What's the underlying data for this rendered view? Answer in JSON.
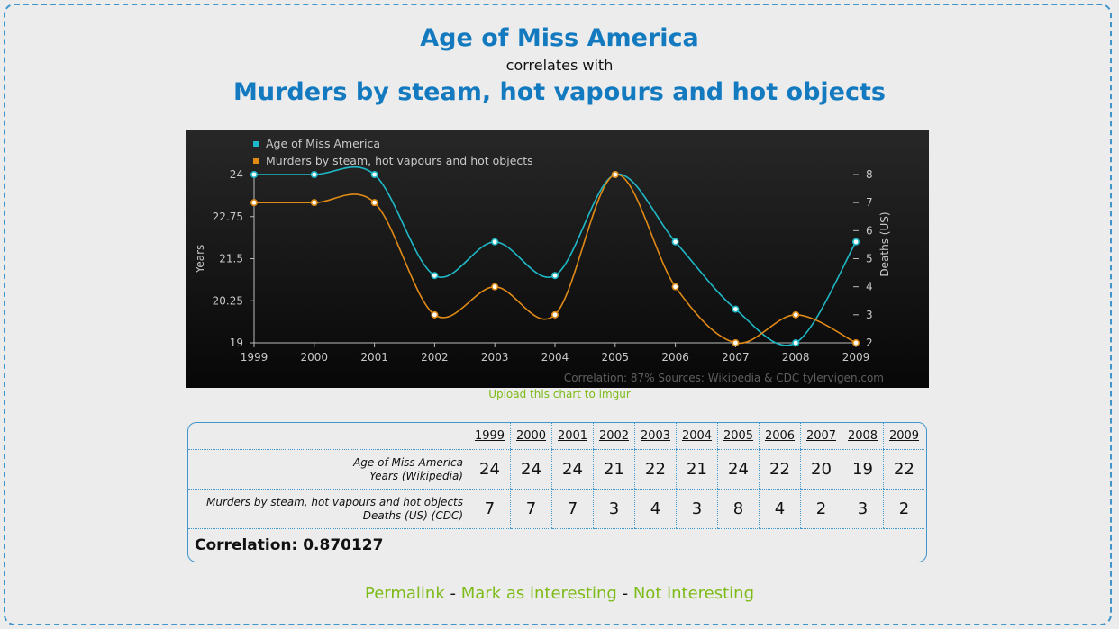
{
  "header": {
    "title_var1": "Age of Miss America",
    "correlates_with": "correlates with",
    "title_var2": "Murders by steam, hot vapours and hot objects"
  },
  "chart_data": {
    "type": "line",
    "x": [
      1999,
      2000,
      2001,
      2002,
      2003,
      2004,
      2005,
      2006,
      2007,
      2008,
      2009
    ],
    "series": [
      {
        "name": "Age of Miss America",
        "axis": "left",
        "color": "#1fb8c6",
        "values": [
          24,
          24,
          24,
          21,
          22,
          21,
          24,
          22,
          20,
          19,
          22
        ]
      },
      {
        "name": "Murders by steam, hot vapours and hot objects",
        "axis": "right",
        "color": "#e08a16",
        "values": [
          7,
          7,
          7,
          3,
          4,
          3,
          8,
          4,
          2,
          3,
          2
        ]
      }
    ],
    "ylabel": "Years",
    "y2label": "Deaths (US)",
    "ylim": [
      19,
      24
    ],
    "y2lim": [
      2,
      8
    ],
    "yticks": [
      "19",
      "20.25",
      "21.5",
      "22.75",
      "24"
    ],
    "y2ticks": [
      "2",
      "3",
      "4",
      "5",
      "6",
      "7",
      "8"
    ],
    "xticks": [
      "1999",
      "2000",
      "2001",
      "2002",
      "2003",
      "2004",
      "2005",
      "2006",
      "2007",
      "2008",
      "2009"
    ],
    "legend_position": "top-left",
    "footer_note": "Correlation: 87%    Sources: Wikipedia & CDC   tylervigen.com"
  },
  "upload_link": "Upload this chart to imgur",
  "table": {
    "years": [
      "1999",
      "2000",
      "2001",
      "2002",
      "2003",
      "2004",
      "2005",
      "2006",
      "2007",
      "2008",
      "2009"
    ],
    "rows": [
      {
        "name": "Age of Miss America",
        "unit": "Years (Wikipedia)",
        "values": [
          "24",
          "24",
          "24",
          "21",
          "22",
          "21",
          "24",
          "22",
          "20",
          "19",
          "22"
        ]
      },
      {
        "name": "Murders by steam, hot vapours and hot objects",
        "unit": "Deaths (US) (CDC)",
        "values": [
          "7",
          "7",
          "7",
          "3",
          "4",
          "3",
          "8",
          "4",
          "2",
          "3",
          "2"
        ]
      }
    ],
    "correlation": "Correlation: 0.870127"
  },
  "footer": {
    "permalink": "Permalink",
    "mark_interesting": "Mark as interesting",
    "not_interesting": "Not interesting",
    "separator": "-"
  }
}
